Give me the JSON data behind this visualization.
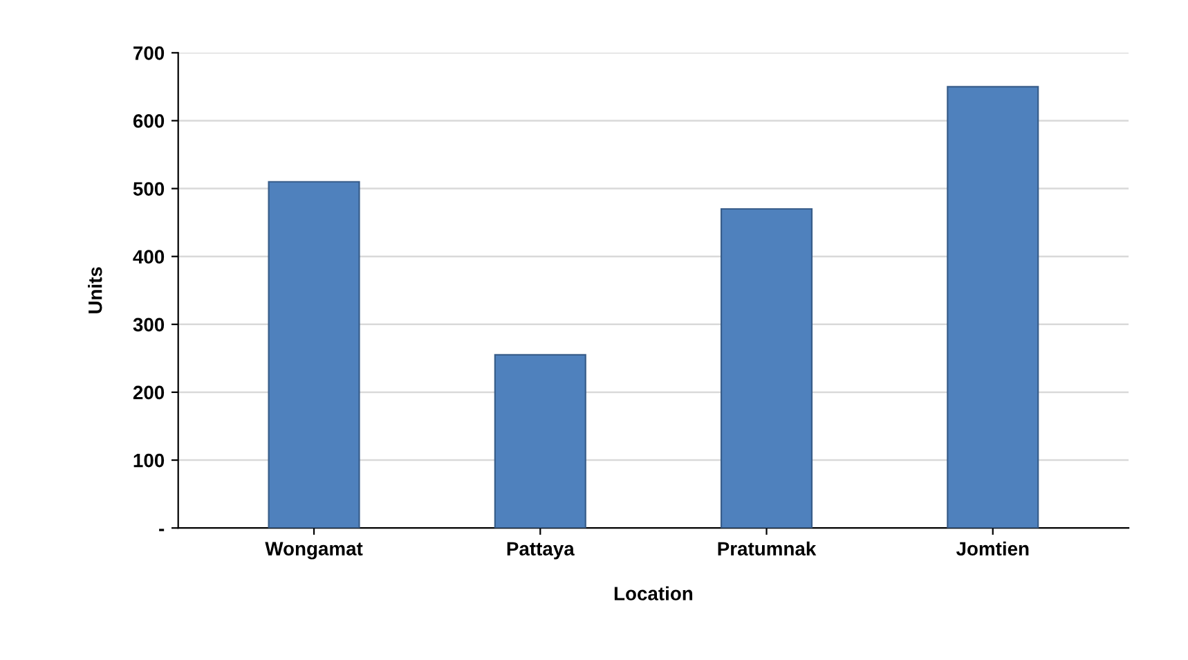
{
  "chart_data": {
    "type": "bar",
    "xlabel": "Location",
    "ylabel": "Units",
    "categories": [
      "Wongamat",
      "Pattaya",
      "Pratumnak",
      "Jomtien"
    ],
    "values": [
      510,
      255,
      470,
      650
    ],
    "color": "#4f81bd",
    "ylim": [
      0,
      700
    ],
    "yticks": [
      {
        "value": 0,
        "label": "-"
      },
      100,
      200,
      300,
      400,
      500,
      600,
      700
    ],
    "grid": "y"
  }
}
